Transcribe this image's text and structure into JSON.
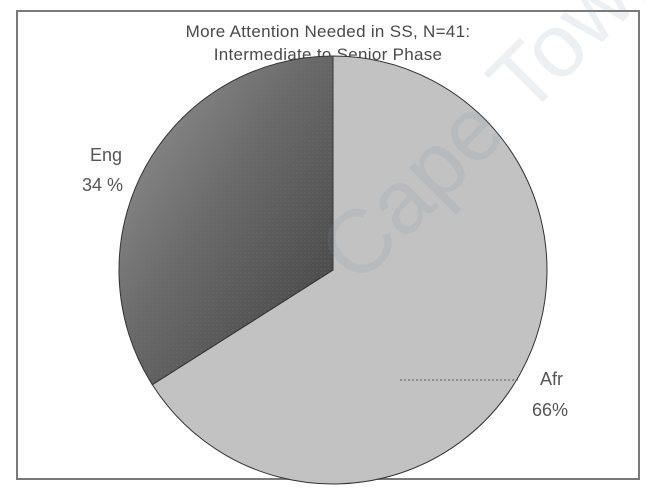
{
  "watermark": "Cape Town",
  "chart_data": {
    "type": "pie",
    "title": "More Attention Needed in SS, N=41:",
    "subtitle": "Intermediate to Senior Phase",
    "slices": [
      {
        "label": "Afr",
        "value": 66,
        "value_label": "66%",
        "color": "#c2c2c2"
      },
      {
        "label": "Eng",
        "value": 34,
        "value_label": "34 %",
        "color": "#5a5a5a"
      }
    ],
    "legend": "none",
    "data_labels": "outside with leader line"
  }
}
